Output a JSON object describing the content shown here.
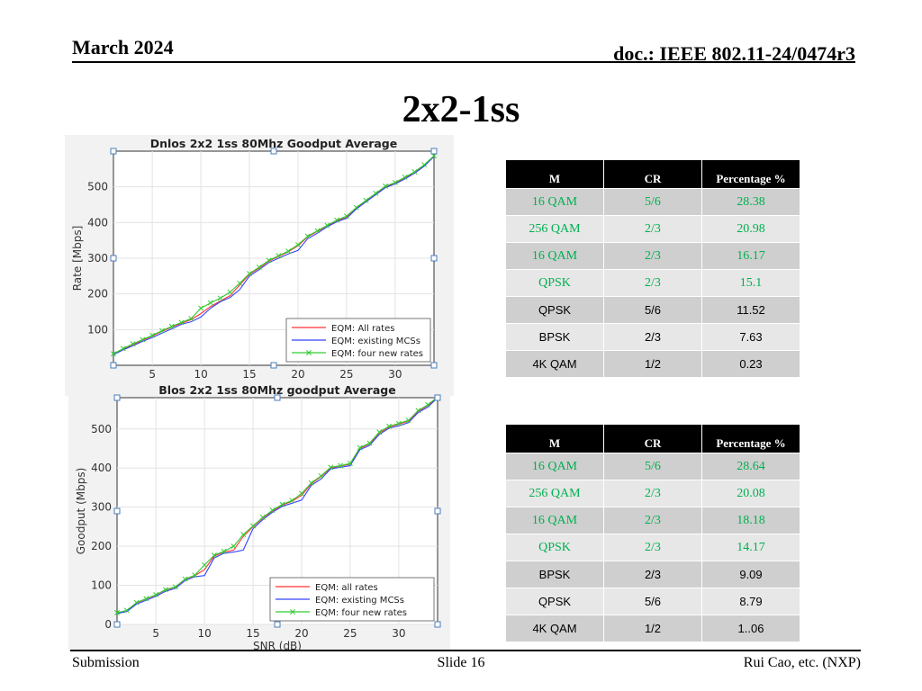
{
  "header": {
    "date": "March 2024",
    "doc": "doc.: IEEE 802.11-24/0474r3"
  },
  "slide_title": "2x2-1ss",
  "footer": {
    "left": "Submission",
    "center": "Slide 16",
    "right": "Rui Cao, etc. (NXP)"
  },
  "colors": {
    "all_rates": "#ff3333",
    "existing": "#3344ff",
    "four_new": "#33cc33",
    "highlight_text": "#00b050"
  },
  "table1": {
    "headers": [
      "M",
      "CR",
      "Percentage %"
    ],
    "rows": [
      {
        "m": "16 QAM",
        "cr": "5/6",
        "pct": "28.38",
        "highlight": true
      },
      {
        "m": "256 QAM",
        "cr": "2/3",
        "pct": "20.98",
        "highlight": true
      },
      {
        "m": "16 QAM",
        "cr": "2/3",
        "pct": "16.17",
        "highlight": true
      },
      {
        "m": "QPSK",
        "cr": "2/3",
        "pct": "15.1",
        "highlight": true
      },
      {
        "m": "QPSK",
        "cr": "5/6",
        "pct": "11.52",
        "highlight": false
      },
      {
        "m": "BPSK",
        "cr": "2/3",
        "pct": "7.63",
        "highlight": false
      },
      {
        "m": "4K QAM",
        "cr": "1/2",
        "pct": "0.23",
        "highlight": false
      }
    ]
  },
  "table2": {
    "headers": [
      "M",
      "CR",
      "Percentage %"
    ],
    "rows": [
      {
        "m": "16 QAM",
        "cr": "5/6",
        "pct": "28.64",
        "highlight": true
      },
      {
        "m": "256 QAM",
        "cr": "2/3",
        "pct": "20.08",
        "highlight": true
      },
      {
        "m": "16 QAM",
        "cr": "2/3",
        "pct": "18.18",
        "highlight": true
      },
      {
        "m": "QPSK",
        "cr": "2/3",
        "pct": "14.17",
        "highlight": true
      },
      {
        "m": "BPSK",
        "cr": "2/3",
        "pct": "9.09",
        "highlight": false
      },
      {
        "m": "QPSK",
        "cr": "5/6",
        "pct": "8.79",
        "highlight": false
      },
      {
        "m": "4K QAM",
        "cr": "1/2",
        "pct": "1..06",
        "highlight": false
      }
    ]
  },
  "chart_data": [
    {
      "type": "line",
      "title": "Dnlos 2x2 1ss 80Mhz Goodput Average",
      "xlabel": "",
      "ylabel": "Rate [Mbps]",
      "xlim": [
        1,
        34
      ],
      "ylim": [
        0,
        600
      ],
      "xticks": [
        5,
        10,
        15,
        20,
        25,
        30
      ],
      "yticks": [
        100,
        200,
        300,
        400,
        500
      ],
      "grid": true,
      "legend_position": "bottom-right",
      "series": [
        {
          "name": "EQM: All rates",
          "color": "#ff3333",
          "marker": "none",
          "x": [
            1,
            2,
            3,
            4,
            5,
            6,
            7,
            8,
            9,
            10,
            11,
            12,
            13,
            14,
            15,
            16,
            17,
            18,
            19,
            20,
            21,
            22,
            23,
            24,
            25,
            26,
            27,
            28,
            29,
            30,
            31,
            32,
            33,
            34
          ],
          "y": [
            30,
            45,
            58,
            70,
            82,
            95,
            107,
            118,
            128,
            145,
            165,
            180,
            195,
            225,
            255,
            272,
            292,
            305,
            318,
            335,
            360,
            375,
            390,
            405,
            415,
            440,
            460,
            480,
            500,
            510,
            525,
            540,
            560,
            585
          ]
        },
        {
          "name": "EQM: existing MCSs",
          "color": "#3344ff",
          "marker": "none",
          "x": [
            1,
            2,
            3,
            4,
            5,
            6,
            7,
            8,
            9,
            10,
            11,
            12,
            13,
            14,
            15,
            16,
            17,
            18,
            19,
            20,
            21,
            22,
            23,
            24,
            25,
            26,
            27,
            28,
            29,
            30,
            31,
            32,
            33,
            34
          ],
          "y": [
            30,
            43,
            55,
            67,
            78,
            90,
            102,
            115,
            122,
            135,
            160,
            178,
            190,
            212,
            250,
            268,
            288,
            300,
            312,
            322,
            355,
            370,
            388,
            402,
            412,
            438,
            458,
            478,
            498,
            508,
            522,
            538,
            558,
            585
          ]
        },
        {
          "name": "EQM: four new rates",
          "color": "#33cc33",
          "marker": "x",
          "x": [
            1,
            2,
            3,
            4,
            5,
            6,
            7,
            8,
            9,
            10,
            11,
            12,
            13,
            14,
            15,
            16,
            17,
            18,
            19,
            20,
            21,
            22,
            23,
            24,
            25,
            26,
            27,
            28,
            29,
            30,
            31,
            32,
            33,
            34
          ],
          "y": [
            32,
            47,
            60,
            72,
            84,
            97,
            109,
            120,
            131,
            160,
            175,
            188,
            205,
            230,
            257,
            275,
            294,
            307,
            320,
            338,
            362,
            377,
            392,
            407,
            418,
            442,
            462,
            482,
            502,
            512,
            527,
            542,
            562,
            587
          ]
        }
      ]
    },
    {
      "type": "line",
      "title": "Blos 2x2 1ss 80Mhz goodput Average",
      "xlabel": "SNR (dB)",
      "ylabel": "Goodput (Mbps)",
      "xlim": [
        1,
        34
      ],
      "ylim": [
        0,
        580
      ],
      "xticks": [
        5,
        10,
        15,
        20,
        25,
        30
      ],
      "yticks": [
        0,
        100,
        200,
        300,
        400,
        500
      ],
      "grid": true,
      "legend_position": "bottom-right",
      "series": [
        {
          "name": "EQM: all rates",
          "color": "#ff3333",
          "marker": "none",
          "x": [
            1,
            2,
            3,
            4,
            5,
            6,
            7,
            8,
            9,
            10,
            11,
            12,
            13,
            14,
            15,
            16,
            17,
            18,
            19,
            20,
            21,
            22,
            23,
            24,
            25,
            26,
            27,
            28,
            29,
            30,
            31,
            32,
            33,
            34
          ],
          "y": [
            30,
            35,
            55,
            65,
            75,
            88,
            95,
            115,
            125,
            140,
            175,
            185,
            190,
            225,
            250,
            272,
            290,
            305,
            315,
            330,
            360,
            378,
            400,
            405,
            410,
            450,
            462,
            490,
            505,
            512,
            520,
            545,
            560,
            580
          ]
        },
        {
          "name": "EQM: existing MCSs",
          "color": "#3344ff",
          "marker": "none",
          "x": [
            1,
            2,
            3,
            4,
            5,
            6,
            7,
            8,
            9,
            10,
            11,
            12,
            13,
            14,
            15,
            16,
            17,
            18,
            19,
            20,
            21,
            22,
            23,
            24,
            25,
            26,
            27,
            28,
            29,
            30,
            31,
            32,
            33,
            34
          ],
          "y": [
            28,
            33,
            52,
            62,
            72,
            85,
            92,
            112,
            122,
            125,
            170,
            182,
            185,
            190,
            245,
            268,
            287,
            302,
            310,
            318,
            356,
            372,
            398,
            402,
            406,
            447,
            458,
            486,
            502,
            508,
            516,
            542,
            556,
            580
          ]
        },
        {
          "name": "EQM: four new rates",
          "color": "#33cc33",
          "marker": "x",
          "x": [
            1,
            2,
            3,
            4,
            5,
            6,
            7,
            8,
            9,
            10,
            11,
            12,
            13,
            14,
            15,
            16,
            17,
            18,
            19,
            20,
            21,
            22,
            23,
            24,
            25,
            26,
            27,
            28,
            29,
            30,
            31,
            32,
            33,
            34
          ],
          "y": [
            30,
            36,
            56,
            66,
            76,
            89,
            96,
            116,
            126,
            152,
            177,
            187,
            200,
            230,
            252,
            274,
            292,
            307,
            317,
            335,
            362,
            380,
            402,
            406,
            412,
            452,
            464,
            492,
            507,
            514,
            522,
            547,
            562,
            582
          ]
        }
      ]
    }
  ]
}
